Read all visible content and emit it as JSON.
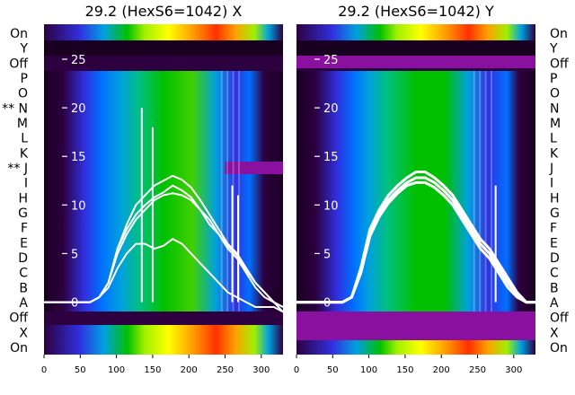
{
  "panel_titles": [
    "29.2 (HexS6=1042) X",
    "29.2 (HexS6=1042) Y"
  ],
  "row_labels": [
    "On",
    "Y",
    "Off",
    "P",
    "O",
    "N",
    "M",
    "L",
    "K",
    "J",
    "I",
    "H",
    "G",
    "F",
    "E",
    "D",
    "C",
    "B",
    "A",
    "Off",
    "X",
    "On"
  ],
  "row_labels_right": [
    "On",
    "Y",
    "Off",
    "P",
    "O",
    "N",
    "M",
    "L",
    "K",
    "J",
    "I",
    "H",
    "G",
    "F",
    "E",
    "D",
    "C",
    "B",
    "A",
    "Off",
    "X",
    "On"
  ],
  "row_markers": {
    "N": "**",
    "J": "**"
  },
  "colors": {
    "profile_line": "#ffffff",
    "palette": [
      "#1a0020",
      "#2d0040",
      "#5a1080",
      "#3030e0",
      "#0070ff",
      "#00a0e0",
      "#00c080",
      "#00c000",
      "#40d000",
      "#a0f000",
      "#ffff00",
      "#ffa000",
      "#ff3000"
    ]
  },
  "chart_data": [
    {
      "type": "heatmap",
      "title": "29.2 (HexS6=1042) X",
      "x_ticks": [
        0,
        50,
        100,
        150,
        200,
        250,
        300
      ],
      "xlim": [
        0,
        330
      ],
      "y_ticks": [
        0,
        5,
        10,
        15,
        20,
        25
      ],
      "ylim": [
        -5.4,
        28.6
      ],
      "overlay": "profile lines (white)",
      "series": [
        {
          "values": [
            0,
            0,
            0,
            0,
            0,
            0,
            0.5,
            2,
            5,
            7,
            8.5,
            9.5,
            10.5,
            11,
            11.2,
            11,
            10.5,
            9.5,
            8.5,
            7,
            5.5,
            4.5,
            3,
            1.5,
            0.5,
            0,
            -0.5
          ]
        },
        {
          "values": [
            0,
            0,
            0,
            0,
            0,
            0,
            0.5,
            2,
            5.5,
            8,
            10,
            11,
            12,
            12.5,
            13,
            12.6,
            11.8,
            10.5,
            9,
            7.5,
            6,
            5,
            3.5,
            2,
            1,
            0,
            -0.5
          ]
        },
        {
          "values": [
            0,
            0,
            0,
            0,
            0,
            0,
            0.5,
            2,
            5.5,
            7.5,
            9,
            10,
            10.8,
            11.3,
            12,
            11.5,
            10.8,
            9.5,
            8,
            7,
            5.8,
            4.8,
            3.3,
            2,
            1,
            0,
            -1
          ]
        },
        {
          "values": [
            0,
            0,
            0,
            0,
            0,
            0,
            0.5,
            1.5,
            3.5,
            5,
            6,
            6,
            5.5,
            5.8,
            6.5,
            6,
            5,
            4,
            3,
            2,
            1,
            0.5,
            0,
            -0.5,
            -0.5,
            -0.5,
            -1
          ]
        }
      ]
    },
    {
      "type": "heatmap",
      "title": "29.2 (HexS6=1042) Y",
      "x_ticks": [
        0,
        50,
        100,
        150,
        200,
        250,
        300
      ],
      "xlim": [
        0,
        330
      ],
      "y_ticks": [
        0,
        5,
        10,
        15,
        20,
        25
      ],
      "ylim": [
        -5.4,
        28.6
      ],
      "overlay": "profile lines (white)",
      "series": [
        {
          "values": [
            0,
            0,
            0,
            0,
            0,
            0,
            0.5,
            3,
            7,
            9,
            10.5,
            11.5,
            12.3,
            12.8,
            12.8,
            12.3,
            11.5,
            10.5,
            9,
            7.5,
            6,
            5,
            3.5,
            2,
            0.8,
            0,
            0
          ]
        },
        {
          "values": [
            0,
            0,
            0,
            0,
            0,
            0,
            0.5,
            3.5,
            7.5,
            9.5,
            11,
            12,
            12.8,
            13.4,
            13.4,
            12.8,
            12,
            11,
            9.5,
            8,
            6.5,
            5.5,
            4,
            2.5,
            1,
            0,
            0
          ]
        },
        {
          "values": [
            0,
            0,
            0,
            0,
            0,
            0,
            0.5,
            3,
            6.8,
            8.8,
            10.2,
            11.2,
            12,
            12.3,
            12.3,
            11.8,
            11,
            10,
            8.5,
            7,
            5.5,
            4.5,
            3,
            1.5,
            0.5,
            0,
            0
          ]
        }
      ]
    }
  ]
}
